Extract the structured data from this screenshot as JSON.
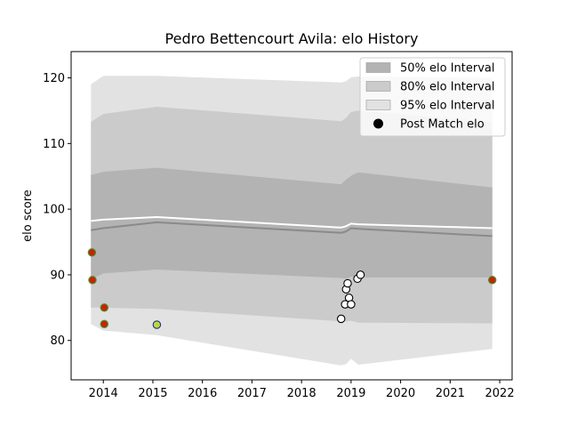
{
  "chart_data": {
    "type": "line",
    "title": "Pedro Bettencourt Avila: elo History",
    "xlabel": "",
    "ylabel": "elo score",
    "xlim": [
      2013.35,
      2022.25
    ],
    "ylim": [
      74.0,
      124.0
    ],
    "x_ticks": [
      2014,
      2015,
      2016,
      2017,
      2018,
      2019,
      2020,
      2021,
      2022
    ],
    "x_tick_labels": [
      "2014",
      "2015",
      "2016",
      "2017",
      "2018",
      "2019",
      "2020",
      "2021",
      "2022"
    ],
    "y_ticks": [
      80,
      90,
      100,
      110,
      120
    ],
    "y_tick_labels": [
      "80",
      "90",
      "100",
      "110",
      "120"
    ],
    "grid": false,
    "legend": {
      "placement": "top-right",
      "entries": [
        "50% elo Interval",
        "80% elo Interval",
        "95% elo Interval",
        "Post Match elo"
      ]
    },
    "band_x": [
      2013.75,
      2014.0,
      2015.08,
      2018.8,
      2018.9,
      2019.0,
      2019.15,
      2021.85
    ],
    "series": [
      {
        "name": "95% elo Interval",
        "color": "#e2e2e2",
        "lower": [
          82.5,
          81.5,
          80.8,
          76.2,
          76.4,
          77.2,
          76.3,
          78.7
        ],
        "upper": [
          119.0,
          120.3,
          120.3,
          119.3,
          119.5,
          120.1,
          120.2,
          120.0
        ]
      },
      {
        "name": "80% elo Interval",
        "color": "#cbcbcb",
        "lower": [
          85.0,
          85.0,
          84.8,
          82.9,
          82.9,
          83.0,
          82.7,
          82.6
        ],
        "upper": [
          113.3,
          114.5,
          115.6,
          113.4,
          113.9,
          114.8,
          115.0,
          113.3
        ]
      },
      {
        "name": "50% elo Interval",
        "color": "#b3b3b3",
        "lower": [
          89.3,
          90.2,
          90.8,
          89.5,
          89.4,
          89.7,
          89.6,
          89.6
        ],
        "upper": [
          105.2,
          105.7,
          106.3,
          103.8,
          104.5,
          105.1,
          105.6,
          103.3
        ]
      },
      {
        "name": "median",
        "color": "#8a8a8a",
        "values": [
          96.8,
          97.1,
          98.0,
          96.4,
          96.6,
          97.1,
          97.0,
          95.9
        ]
      },
      {
        "name": "mean",
        "color": "#ffffff",
        "values": [
          98.2,
          98.4,
          98.8,
          97.2,
          97.4,
          97.8,
          97.7,
          97.1
        ]
      }
    ],
    "points": [
      {
        "x": 2013.77,
        "y": 93.4,
        "color": "#cc2200",
        "edge": "#3c9a3c"
      },
      {
        "x": 2013.78,
        "y": 89.2,
        "color": "#cc2200",
        "edge": "#3c9a3c"
      },
      {
        "x": 2014.02,
        "y": 85.0,
        "color": "#cc2200",
        "edge": "#3c9a3c"
      },
      {
        "x": 2014.02,
        "y": 82.5,
        "color": "#cc2200",
        "edge": "#3c9a3c"
      },
      {
        "x": 2015.08,
        "y": 82.4,
        "color": "#b6dc3c",
        "edge": "#2a2a8a"
      },
      {
        "x": 2018.8,
        "y": 83.3,
        "color": "#ffffff",
        "edge": "#000000"
      },
      {
        "x": 2018.88,
        "y": 85.5,
        "color": "#ffffff",
        "edge": "#000000"
      },
      {
        "x": 2018.9,
        "y": 87.8,
        "color": "#ffffff",
        "edge": "#000000"
      },
      {
        "x": 2018.93,
        "y": 88.7,
        "color": "#ffffff",
        "edge": "#000000"
      },
      {
        "x": 2018.96,
        "y": 86.5,
        "color": "#ffffff",
        "edge": "#000000"
      },
      {
        "x": 2019.0,
        "y": 85.5,
        "color": "#ffffff",
        "edge": "#000000"
      },
      {
        "x": 2019.13,
        "y": 89.4,
        "color": "#ffffff",
        "edge": "#000000"
      },
      {
        "x": 2019.19,
        "y": 90.0,
        "color": "#ffffff",
        "edge": "#000000"
      },
      {
        "x": 2021.85,
        "y": 89.2,
        "color": "#cc2200",
        "edge": "#3c9a3c"
      }
    ]
  }
}
